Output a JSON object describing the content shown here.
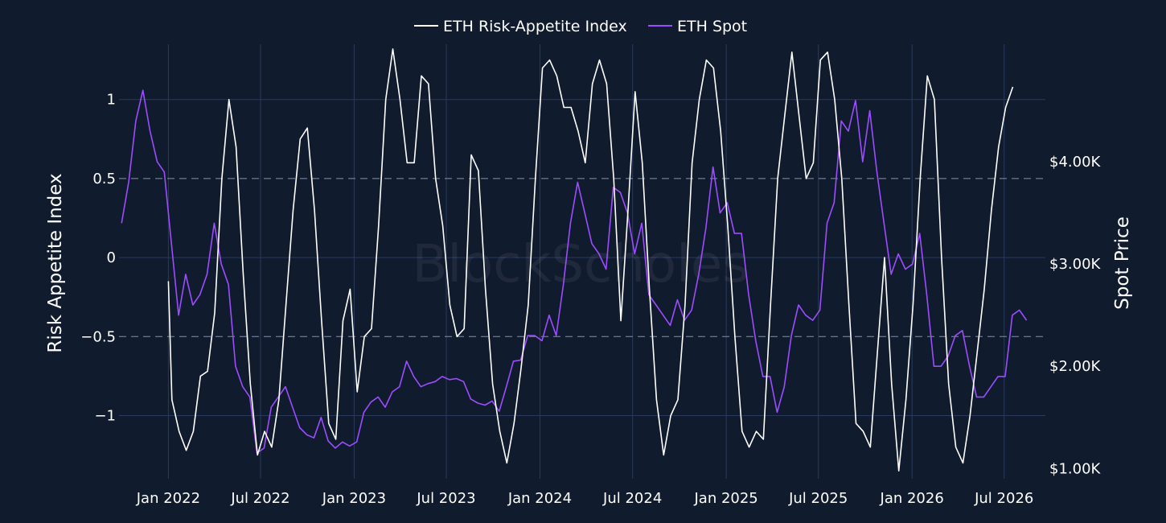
{
  "chart_data": {
    "type": "line",
    "watermark": "BlockScholes",
    "legend": {
      "placement": "top-center",
      "items": [
        {
          "name": "ETH Risk-Appetite Index",
          "color": "#ffffff"
        },
        {
          "name": "ETH Spot",
          "color": "#9b4dff"
        }
      ]
    },
    "y_left": {
      "title": "Risk Appetite Index",
      "range": [
        -1.4,
        1.35
      ],
      "ticks": [
        1,
        0.5,
        0,
        -0.5,
        -1
      ],
      "tick_labels": [
        "1",
        "0.5",
        "0",
        "−0.5",
        "−1"
      ],
      "reference_lines": [
        0.5,
        -0.5
      ]
    },
    "y_right": {
      "title": "Spot Price",
      "range": [
        900,
        5150
      ],
      "ticks": [
        4000,
        3000,
        2000,
        1000
      ],
      "tick_labels": [
        "$4.00K",
        "$3.00K",
        "$2.00K",
        "$1.00K"
      ]
    },
    "x_axis": {
      "range": [
        "2021-09-26",
        "2026-09-20"
      ],
      "ticks": [
        "2022-01-01",
        "2022-07-01",
        "2023-01-01",
        "2023-07-01",
        "2024-01-01",
        "2024-07-01",
        "2025-01-01",
        "2025-07-01",
        "2026-01-01",
        "2026-07-01"
      ],
      "tick_labels": [
        "Jan 2022",
        "Jul 2022",
        "Jan 2023",
        "Jul 2023",
        "Jan 2024",
        "Jul 2024",
        "Jan 2025",
        "Jul 2025",
        "Jan 2026",
        "Jul 2026"
      ],
      "grid": true
    },
    "series": [
      {
        "name": "ETH Risk-Appetite Index",
        "axis": "left",
        "color": "#ffffff",
        "points": [
          [
            "2022-01-01",
            -0.15
          ],
          [
            "2022-01-08",
            -0.9
          ],
          [
            "2022-01-22",
            -1.1
          ],
          [
            "2022-02-05",
            -1.22
          ],
          [
            "2022-02-19",
            -1.1
          ],
          [
            "2022-03-05",
            -0.75
          ],
          [
            "2022-03-19",
            -0.72
          ],
          [
            "2022-04-02",
            -0.35
          ],
          [
            "2022-04-16",
            0.5
          ],
          [
            "2022-04-30",
            1.0
          ],
          [
            "2022-05-14",
            0.7
          ],
          [
            "2022-05-28",
            -0.1
          ],
          [
            "2022-06-11",
            -0.8
          ],
          [
            "2022-06-25",
            -1.25
          ],
          [
            "2022-07-09",
            -1.1
          ],
          [
            "2022-07-23",
            -1.2
          ],
          [
            "2022-08-06",
            -0.9
          ],
          [
            "2022-08-20",
            -0.3
          ],
          [
            "2022-09-03",
            0.3
          ],
          [
            "2022-09-17",
            0.75
          ],
          [
            "2022-10-01",
            0.82
          ],
          [
            "2022-10-15",
            0.3
          ],
          [
            "2022-10-29",
            -0.4
          ],
          [
            "2022-11-12",
            -1.05
          ],
          [
            "2022-11-26",
            -1.15
          ],
          [
            "2022-12-10",
            -0.4
          ],
          [
            "2022-12-24",
            -0.2
          ],
          [
            "2023-01-07",
            -0.85
          ],
          [
            "2023-01-21",
            -0.5
          ],
          [
            "2023-02-04",
            -0.45
          ],
          [
            "2023-02-18",
            0.2
          ],
          [
            "2023-03-04",
            1.0
          ],
          [
            "2023-03-18",
            1.32
          ],
          [
            "2023-04-01",
            1.0
          ],
          [
            "2023-04-15",
            0.6
          ],
          [
            "2023-04-29",
            0.6
          ],
          [
            "2023-05-13",
            1.15
          ],
          [
            "2023-05-27",
            1.1
          ],
          [
            "2023-06-10",
            0.5
          ],
          [
            "2023-06-24",
            0.2
          ],
          [
            "2023-07-08",
            -0.3
          ],
          [
            "2023-07-22",
            -0.5
          ],
          [
            "2023-08-05",
            -0.45
          ],
          [
            "2023-08-19",
            0.65
          ],
          [
            "2023-09-02",
            0.55
          ],
          [
            "2023-09-16",
            -0.2
          ],
          [
            "2023-09-30",
            -0.8
          ],
          [
            "2023-10-14",
            -1.1
          ],
          [
            "2023-10-28",
            -1.3
          ],
          [
            "2023-11-11",
            -1.05
          ],
          [
            "2023-11-25",
            -0.7
          ],
          [
            "2023-12-09",
            -0.3
          ],
          [
            "2023-12-23",
            0.5
          ],
          [
            "2024-01-06",
            1.2
          ],
          [
            "2024-01-20",
            1.25
          ],
          [
            "2024-02-03",
            1.15
          ],
          [
            "2024-02-17",
            0.95
          ],
          [
            "2024-03-02",
            0.95
          ],
          [
            "2024-03-16",
            0.8
          ],
          [
            "2024-03-30",
            0.6
          ],
          [
            "2024-04-13",
            1.1
          ],
          [
            "2024-04-27",
            1.25
          ],
          [
            "2024-05-11",
            1.1
          ],
          [
            "2024-05-25",
            0.5
          ],
          [
            "2024-06-08",
            -0.4
          ],
          [
            "2024-06-22",
            0.3
          ],
          [
            "2024-07-06",
            1.05
          ],
          [
            "2024-07-20",
            0.6
          ],
          [
            "2024-08-03",
            -0.2
          ],
          [
            "2024-08-17",
            -0.9
          ],
          [
            "2024-08-31",
            -1.25
          ],
          [
            "2024-09-14",
            -1.0
          ],
          [
            "2024-09-28",
            -0.9
          ],
          [
            "2024-10-12",
            -0.3
          ],
          [
            "2024-10-26",
            0.6
          ],
          [
            "2024-11-09",
            1.0
          ],
          [
            "2024-11-23",
            1.25
          ],
          [
            "2024-12-07",
            1.2
          ],
          [
            "2024-12-21",
            0.8
          ],
          [
            "2025-01-04",
            0.2
          ],
          [
            "2025-01-18",
            -0.5
          ],
          [
            "2025-02-01",
            -1.1
          ],
          [
            "2025-02-15",
            -1.2
          ],
          [
            "2025-03-01",
            -1.1
          ],
          [
            "2025-03-15",
            -1.15
          ],
          [
            "2025-03-29",
            -0.3
          ],
          [
            "2025-04-12",
            0.5
          ],
          [
            "2025-04-26",
            0.9
          ],
          [
            "2025-05-10",
            1.3
          ],
          [
            "2025-05-24",
            0.9
          ],
          [
            "2025-06-07",
            0.5
          ],
          [
            "2025-06-21",
            0.6
          ],
          [
            "2025-07-05",
            1.25
          ],
          [
            "2025-07-19",
            1.3
          ],
          [
            "2025-08-02",
            1.0
          ],
          [
            "2025-08-16",
            0.5
          ],
          [
            "2025-08-30",
            -0.3
          ],
          [
            "2025-09-13",
            -1.05
          ],
          [
            "2025-09-27",
            -1.1
          ],
          [
            "2025-10-11",
            -1.2
          ],
          [
            "2025-10-25",
            -0.6
          ],
          [
            "2025-11-08",
            0.0
          ],
          [
            "2025-11-22",
            -0.8
          ],
          [
            "2025-12-06",
            -1.35
          ],
          [
            "2025-12-20",
            -0.9
          ],
          [
            "2026-01-03",
            -0.3
          ],
          [
            "2026-01-17",
            0.5
          ],
          [
            "2026-01-31",
            1.15
          ],
          [
            "2026-02-14",
            1.0
          ],
          [
            "2026-02-28",
            0.0
          ],
          [
            "2026-03-14",
            -0.8
          ],
          [
            "2026-03-28",
            -1.2
          ],
          [
            "2026-04-11",
            -1.3
          ],
          [
            "2026-04-25",
            -1.0
          ],
          [
            "2026-05-09",
            -0.6
          ],
          [
            "2026-05-23",
            -0.2
          ],
          [
            "2026-06-06",
            0.3
          ],
          [
            "2026-06-20",
            0.7
          ],
          [
            "2026-07-04",
            0.95
          ],
          [
            "2026-07-18",
            1.08
          ]
        ]
      },
      {
        "name": "ETH Spot",
        "axis": "right",
        "color": "#9b4dff",
        "points": [
          [
            "2021-10-01",
            3400
          ],
          [
            "2021-10-15",
            3800
          ],
          [
            "2021-10-29",
            4400
          ],
          [
            "2021-11-12",
            4700
          ],
          [
            "2021-11-26",
            4300
          ],
          [
            "2021-12-10",
            4000
          ],
          [
            "2021-12-24",
            3900
          ],
          [
            "2022-01-07",
            3200
          ],
          [
            "2022-01-21",
            2500
          ],
          [
            "2022-02-04",
            2900
          ],
          [
            "2022-02-18",
            2600
          ],
          [
            "2022-03-04",
            2700
          ],
          [
            "2022-03-18",
            2900
          ],
          [
            "2022-04-01",
            3400
          ],
          [
            "2022-04-15",
            3000
          ],
          [
            "2022-04-29",
            2800
          ],
          [
            "2022-05-13",
            2000
          ],
          [
            "2022-05-27",
            1800
          ],
          [
            "2022-06-10",
            1700
          ],
          [
            "2022-06-24",
            1150
          ],
          [
            "2022-07-08",
            1200
          ],
          [
            "2022-07-22",
            1600
          ],
          [
            "2022-08-05",
            1700
          ],
          [
            "2022-08-19",
            1800
          ],
          [
            "2022-09-02",
            1600
          ],
          [
            "2022-09-16",
            1400
          ],
          [
            "2022-09-30",
            1330
          ],
          [
            "2022-10-14",
            1300
          ],
          [
            "2022-10-28",
            1500
          ],
          [
            "2022-11-11",
            1270
          ],
          [
            "2022-11-25",
            1200
          ],
          [
            "2022-12-09",
            1260
          ],
          [
            "2022-12-23",
            1220
          ],
          [
            "2023-01-06",
            1260
          ],
          [
            "2023-01-20",
            1550
          ],
          [
            "2023-02-03",
            1650
          ],
          [
            "2023-02-17",
            1700
          ],
          [
            "2023-03-03",
            1600
          ],
          [
            "2023-03-17",
            1750
          ],
          [
            "2023-03-31",
            1800
          ],
          [
            "2023-04-14",
            2050
          ],
          [
            "2023-04-28",
            1900
          ],
          [
            "2023-05-12",
            1800
          ],
          [
            "2023-05-26",
            1830
          ],
          [
            "2023-06-09",
            1850
          ],
          [
            "2023-06-23",
            1900
          ],
          [
            "2023-07-07",
            1870
          ],
          [
            "2023-07-21",
            1880
          ],
          [
            "2023-08-04",
            1850
          ],
          [
            "2023-08-18",
            1680
          ],
          [
            "2023-09-01",
            1640
          ],
          [
            "2023-09-15",
            1620
          ],
          [
            "2023-09-29",
            1660
          ],
          [
            "2023-10-13",
            1560
          ],
          [
            "2023-10-27",
            1800
          ],
          [
            "2023-11-10",
            2050
          ],
          [
            "2023-11-24",
            2060
          ],
          [
            "2023-12-08",
            2300
          ],
          [
            "2023-12-22",
            2300
          ],
          [
            "2024-01-05",
            2250
          ],
          [
            "2024-01-19",
            2500
          ],
          [
            "2024-02-02",
            2300
          ],
          [
            "2024-02-16",
            2800
          ],
          [
            "2024-03-01",
            3400
          ],
          [
            "2024-03-15",
            3800
          ],
          [
            "2024-03-29",
            3500
          ],
          [
            "2024-04-12",
            3200
          ],
          [
            "2024-04-26",
            3100
          ],
          [
            "2024-05-10",
            2950
          ],
          [
            "2024-05-24",
            3750
          ],
          [
            "2024-06-07",
            3700
          ],
          [
            "2024-06-21",
            3500
          ],
          [
            "2024-07-05",
            3100
          ],
          [
            "2024-07-19",
            3400
          ],
          [
            "2024-08-02",
            2700
          ],
          [
            "2024-08-16",
            2600
          ],
          [
            "2024-08-30",
            2500
          ],
          [
            "2024-09-13",
            2400
          ],
          [
            "2024-09-27",
            2650
          ],
          [
            "2024-10-11",
            2450
          ],
          [
            "2024-10-25",
            2550
          ],
          [
            "2024-11-08",
            2900
          ],
          [
            "2024-11-22",
            3350
          ],
          [
            "2024-12-06",
            3950
          ],
          [
            "2024-12-20",
            3500
          ],
          [
            "2025-01-03",
            3600
          ],
          [
            "2025-01-17",
            3300
          ],
          [
            "2025-01-31",
            3300
          ],
          [
            "2025-02-14",
            2700
          ],
          [
            "2025-02-28",
            2250
          ],
          [
            "2025-03-14",
            1900
          ],
          [
            "2025-03-28",
            1900
          ],
          [
            "2025-04-11",
            1550
          ],
          [
            "2025-04-25",
            1800
          ],
          [
            "2025-05-09",
            2300
          ],
          [
            "2025-05-23",
            2600
          ],
          [
            "2025-06-06",
            2500
          ],
          [
            "2025-06-20",
            2450
          ],
          [
            "2025-07-04",
            2550
          ],
          [
            "2025-07-18",
            3400
          ],
          [
            "2025-08-01",
            3600
          ],
          [
            "2025-08-15",
            4400
          ],
          [
            "2025-08-29",
            4300
          ],
          [
            "2025-09-12",
            4600
          ],
          [
            "2025-09-26",
            4000
          ],
          [
            "2025-10-10",
            4500
          ],
          [
            "2025-10-24",
            3900
          ],
          [
            "2025-11-07",
            3400
          ],
          [
            "2025-11-21",
            2900
          ],
          [
            "2025-12-05",
            3100
          ],
          [
            "2025-12-19",
            2950
          ],
          [
            "2026-01-02",
            3000
          ],
          [
            "2026-01-16",
            3300
          ],
          [
            "2026-01-30",
            2700
          ],
          [
            "2026-02-13",
            2000
          ],
          [
            "2026-02-27",
            2000
          ],
          [
            "2026-03-13",
            2100
          ],
          [
            "2026-03-27",
            2300
          ],
          [
            "2026-04-10",
            2350
          ],
          [
            "2026-04-24",
            2000
          ],
          [
            "2026-05-08",
            1700
          ],
          [
            "2026-05-22",
            1700
          ],
          [
            "2026-06-05",
            1800
          ],
          [
            "2026-06-19",
            1900
          ],
          [
            "2026-07-03",
            1900
          ],
          [
            "2026-07-17",
            2500
          ],
          [
            "2026-07-31",
            2550
          ],
          [
            "2026-08-14",
            2450
          ]
        ]
      }
    ]
  }
}
